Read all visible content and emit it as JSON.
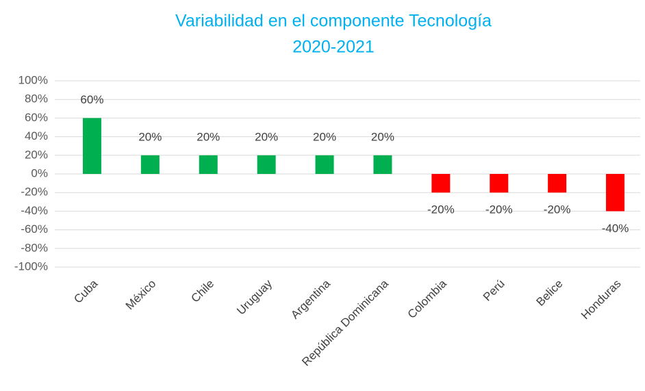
{
  "chart_data": {
    "type": "bar",
    "title": [
      "Variabilidad en el componente Tecnología",
      "2020-2021"
    ],
    "categories": [
      "Cuba",
      "México",
      "Chile",
      "Uruguay",
      "Argentina",
      "República Dominicana",
      "Colombia",
      "Perú",
      "Belice",
      "Honduras"
    ],
    "values": [
      60,
      20,
      20,
      20,
      20,
      20,
      -20,
      -20,
      -20,
      -40
    ],
    "value_labels": [
      "60%",
      "20%",
      "20%",
      "20%",
      "20%",
      "20%",
      "-20%",
      "-20%",
      "-20%",
      "-40%"
    ],
    "colors": [
      "#00b050",
      "#00b050",
      "#00b050",
      "#00b050",
      "#00b050",
      "#00b050",
      "#ff0000",
      "#ff0000",
      "#ff0000",
      "#ff0000"
    ],
    "ylim": [
      -100,
      100
    ],
    "yticks": [
      {
        "value": -100,
        "label": "-100%"
      },
      {
        "value": -80,
        "label": "-80%"
      },
      {
        "value": -60,
        "label": "-60%"
      },
      {
        "value": -40,
        "label": "-40%"
      },
      {
        "value": -20,
        "label": "-20%"
      },
      {
        "value": 0,
        "label": "0%"
      },
      {
        "value": 20,
        "label": "20%"
      },
      {
        "value": 40,
        "label": "40%"
      },
      {
        "value": 60,
        "label": "60%"
      },
      {
        "value": 80,
        "label": "80%"
      },
      {
        "value": 100,
        "label": "100%"
      }
    ],
    "grid": true
  }
}
